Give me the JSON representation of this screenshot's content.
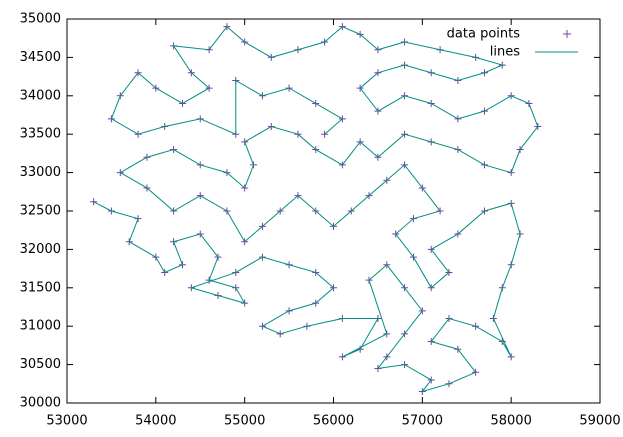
{
  "chart_data": {
    "type": "scatter",
    "x": [
      53300,
      53500,
      53800,
      53700,
      54000,
      54100,
      54300,
      54200,
      54500,
      54700,
      54600,
      54900,
      55000,
      54700,
      54400,
      54900,
      55200,
      55500,
      55800,
      56000,
      55800,
      55500,
      55200,
      55400,
      55700,
      56100,
      56500,
      56300,
      56100,
      56600,
      56400,
      56600,
      56800,
      57000,
      56800,
      56600,
      56500,
      56800,
      57100,
      57000,
      57300,
      57600,
      57400,
      57100,
      57300,
      57600,
      57900,
      58000,
      57800,
      57900,
      58000,
      58100,
      58000,
      57700,
      57400,
      57100,
      57300,
      57100,
      56900,
      56700,
      56900,
      57200,
      57000,
      56800,
      56600,
      56400,
      56200,
      56000,
      55800,
      55600,
      55400,
      55200,
      55000,
      54800,
      54500,
      54200,
      53900,
      53600,
      53900,
      54200,
      54500,
      54800,
      55000,
      55100,
      55000,
      55300,
      55600,
      55800,
      56100,
      56300,
      56500,
      56800,
      57100,
      57400,
      57700,
      58000,
      58100,
      58300,
      58200,
      58000,
      57700,
      57400,
      57100,
      56800,
      56500,
      56300,
      56500,
      56800,
      57100,
      57400,
      57700,
      57900,
      57600,
      57200,
      56800,
      56500,
      56300,
      56100,
      55900,
      55600,
      55300,
      55000,
      54800,
      54600,
      54200,
      54400,
      54600,
      54300,
      54000,
      53800,
      53600,
      53500,
      53800,
      54100,
      54500,
      54900,
      54900,
      55200,
      55500,
      55800,
      56100,
      55900
    ],
    "series": [
      {
        "name": "data points",
        "style": "points",
        "color": "#7b3fa0",
        "values": [
          32620,
          32500,
          32400,
          32100,
          31900,
          31700,
          31800,
          32100,
          32200,
          31900,
          31600,
          31500,
          31300,
          31400,
          31500,
          31700,
          31900,
          31800,
          31700,
          31500,
          31300,
          31200,
          31000,
          30900,
          31000,
          31100,
          31100,
          30700,
          30600,
          30900,
          31600,
          31800,
          31500,
          31200,
          30900,
          30600,
          30450,
          30500,
          30300,
          30150,
          30250,
          30400,
          30700,
          30800,
          31100,
          31000,
          30800,
          30600,
          31100,
          31500,
          31800,
          32200,
          32600,
          32500,
          32200,
          32000,
          31700,
          31500,
          31900,
          32200,
          32400,
          32500,
          32800,
          33100,
          32900,
          32700,
          32500,
          32300,
          32500,
          32700,
          32500,
          32300,
          32100,
          32500,
          32700,
          32500,
          32800,
          33000,
          33200,
          33300,
          33100,
          33000,
          32800,
          33100,
          33400,
          33600,
          33500,
          33300,
          33100,
          33400,
          33200,
          33500,
          33400,
          33300,
          33100,
          33000,
          33300,
          33600,
          33900,
          34000,
          33800,
          33700,
          33900,
          34000,
          33800,
          34100,
          34300,
          34400,
          34300,
          34200,
          34300,
          34400,
          34500,
          34600,
          34700,
          34600,
          34800,
          34900,
          34700,
          34600,
          34500,
          34700,
          34900,
          34600,
          34650,
          34300,
          34100,
          33900,
          34100,
          34300,
          34000,
          33700,
          33500,
          33600,
          33700,
          33500,
          34200,
          34000,
          34100,
          33900,
          33700,
          33500
        ]
      },
      {
        "name": "lines",
        "style": "line",
        "color": "#009080",
        "values": [
          32620,
          32500,
          32400,
          32100,
          31900,
          31700,
          31800,
          32100,
          32200,
          31900,
          31600,
          31500,
          31300,
          31400,
          31500,
          31700,
          31900,
          31800,
          31700,
          31500,
          31300,
          31200,
          31000,
          30900,
          31000,
          31100,
          31100,
          30700,
          30600,
          30900,
          31600,
          31800,
          31500,
          31200,
          30900,
          30600,
          30450,
          30500,
          30300,
          30150,
          30250,
          30400,
          30700,
          30800,
          31100,
          31000,
          30800,
          30600,
          31100,
          31500,
          31800,
          32200,
          32600,
          32500,
          32200,
          32000,
          31700,
          31500,
          31900,
          32200,
          32400,
          32500,
          32800,
          33100,
          32900,
          32700,
          32500,
          32300,
          32500,
          32700,
          32500,
          32300,
          32100,
          32500,
          32700,
          32500,
          32800,
          33000,
          33200,
          33300,
          33100,
          33000,
          32800,
          33100,
          33400,
          33600,
          33500,
          33300,
          33100,
          33400,
          33200,
          33500,
          33400,
          33300,
          33100,
          33000,
          33300,
          33600,
          33900,
          34000,
          33800,
          33700,
          33900,
          34000,
          33800,
          34100,
          34300,
          34400,
          34300,
          34200,
          34300,
          34400,
          34500,
          34600,
          34700,
          34600,
          34800,
          34900,
          34700,
          34600,
          34500,
          34700,
          34900,
          34600,
          34650,
          34300,
          34100,
          33900,
          34100,
          34300,
          34000,
          33700,
          33500,
          33600,
          33700,
          33500,
          34200,
          34000,
          34100,
          33900,
          33700,
          33500
        ]
      }
    ],
    "xlim": [
      53000,
      59000
    ],
    "xticks": [
      53000,
      54000,
      55000,
      56000,
      57000,
      58000,
      59000
    ],
    "ylim": [
      30000,
      35000
    ],
    "yticks": [
      30000,
      30500,
      31000,
      31500,
      32000,
      32500,
      33000,
      33500,
      34000,
      34500,
      35000
    ],
    "legend": "top-right"
  }
}
